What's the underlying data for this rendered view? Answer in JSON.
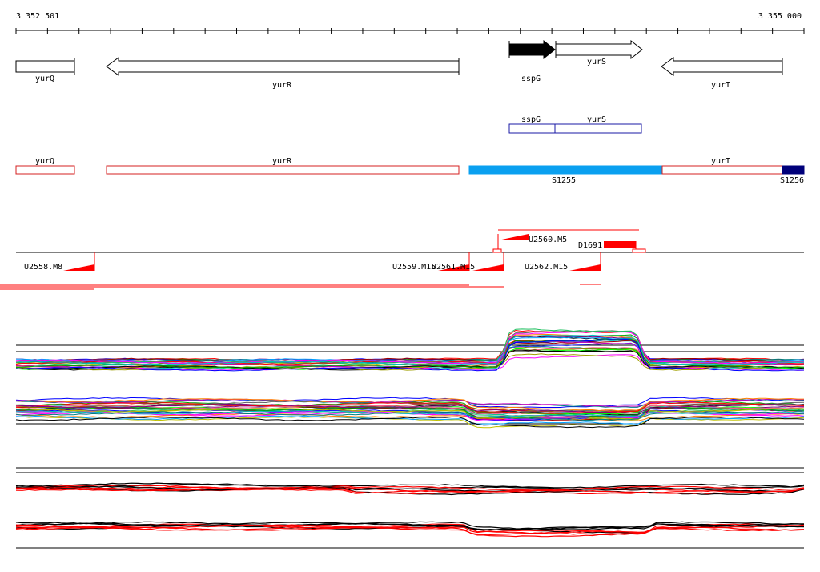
{
  "ruler": {
    "start_label": "3 352 501",
    "end_label": "3 355 000"
  },
  "genes": [
    {
      "name": "yurQ",
      "direction": "none"
    },
    {
      "name": "yurR",
      "direction": "left"
    },
    {
      "name": "sspG",
      "direction": "right",
      "filled": true
    },
    {
      "name": "yurS",
      "direction": "right"
    },
    {
      "name": "yurT",
      "direction": "left"
    }
  ],
  "operon": {
    "labels": [
      "sspG",
      "yurS"
    ]
  },
  "segments": [
    {
      "label": "yurQ"
    },
    {
      "label": "yurR"
    },
    {
      "label": "S1255"
    },
    {
      "label": "yurT"
    },
    {
      "label": "S1256"
    }
  ],
  "peaks_top": [
    {
      "label": "U2560.M5"
    },
    {
      "label": "D1691"
    }
  ],
  "peaks_bottom": [
    {
      "label": "U2558.M8"
    },
    {
      "label": "U2559.M15"
    },
    {
      "label": "U2561.M15"
    },
    {
      "label": "U2562.M15"
    }
  ],
  "colors": {
    "gene_outline": "#000000",
    "operon_outline": "#1a1aa6",
    "segment_outline": "#d42020",
    "segment_light_blue": "#0aa0f0",
    "segment_dark_blue": "#00007a",
    "peak_red": "#ff0000"
  }
}
